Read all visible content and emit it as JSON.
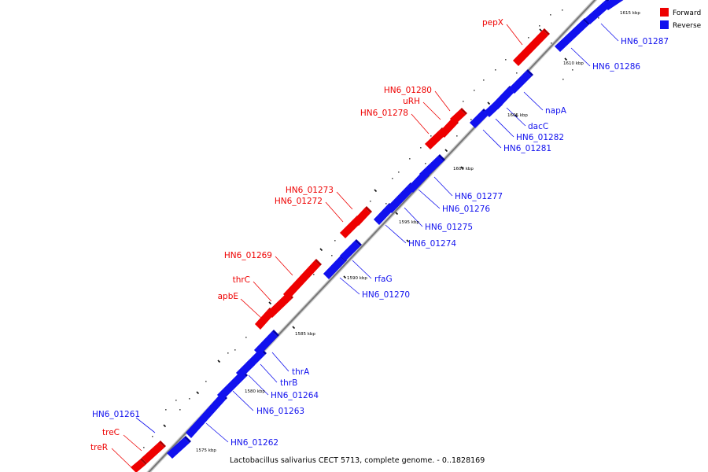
{
  "legend": [
    {
      "label": "Forward",
      "color": "#ee0000"
    },
    {
      "label": "Reverse",
      "color": "#1111ee"
    }
  ],
  "caption": "Lactobacillus salivarius CECT 5713, complete genome. - 0..1828169",
  "scale_labels": [
    "1575 kbp",
    "1580 kbp",
    "1585 kbp",
    "1590 kbp",
    "1595 kbp",
    "1600 kbp",
    "1605 kbp",
    "1610 kbp",
    "1615 kbp"
  ],
  "forward_labels": [
    "treR",
    "treC",
    "apbE",
    "thrC",
    "HN6_01269",
    "HN6_01272",
    "HN6_01273",
    "HN6_01278",
    "uRH",
    "HN6_01280",
    "pepX"
  ],
  "reverse_labels": [
    "HN6_01261",
    "HN6_01262",
    "HN6_01263",
    "HN6_01264",
    "thrB",
    "thrA",
    "HN6_01270",
    "rfaG",
    "HN6_01274",
    "HN6_01275",
    "HN6_01276",
    "HN6_01277",
    "HN6_01281",
    "HN6_01282",
    "dacC",
    "napA",
    "HN6_01286",
    "HN6_01287"
  ]
}
